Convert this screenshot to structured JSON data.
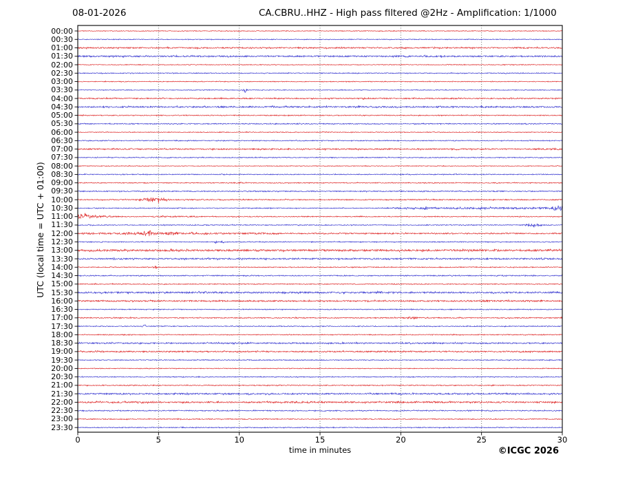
{
  "header": {
    "date": "08-01-2026"
  },
  "footer": {
    "credit": "©ICGC 2026"
  },
  "colors": {
    "grid": "#555555",
    "axis": "#000000",
    "background": "#ffffff"
  },
  "chart_data": {
    "type": "line",
    "subtype": "helicorder-day-plot",
    "title": "CA.CBRU..HHZ - High pass filtered @2Hz - Amplification: 1/1000",
    "xlabel": "time in minutes",
    "ylabel": "UTC (local time = UTC + 01:00)",
    "x_range": [
      0,
      30
    ],
    "x_ticks": [
      0,
      5,
      10,
      15,
      20,
      25,
      30
    ],
    "grid_minutes": [
      5,
      10,
      15,
      20,
      25
    ],
    "minutes_per_row": 30,
    "legend": "rows alternate color by half hour: :00 red, :30 blue",
    "row_colors": {
      "red": "#dd2323",
      "blue": "#3030cf"
    },
    "rows": [
      {
        "label": "00:00",
        "color": "red",
        "noise": 0.5,
        "events": []
      },
      {
        "label": "00:30",
        "color": "blue",
        "noise": 0.5,
        "events": []
      },
      {
        "label": "01:00",
        "color": "red",
        "noise": 0.9,
        "events": []
      },
      {
        "label": "01:30",
        "color": "blue",
        "noise": 1.0,
        "events": []
      },
      {
        "label": "02:00",
        "color": "red",
        "noise": 0.5,
        "events": []
      },
      {
        "label": "02:30",
        "color": "blue",
        "noise": 0.6,
        "events": []
      },
      {
        "label": "03:00",
        "color": "red",
        "noise": 0.5,
        "events": []
      },
      {
        "label": "03:30",
        "color": "blue",
        "noise": 0.5,
        "events": [
          {
            "from": 10.2,
            "to": 10.6,
            "peak": 10.35,
            "amp": 3.6,
            "shape": "gauss"
          }
        ]
      },
      {
        "label": "04:00",
        "color": "red",
        "noise": 0.8,
        "events": []
      },
      {
        "label": "04:30",
        "color": "blue",
        "noise": 1.0,
        "events": []
      },
      {
        "label": "05:00",
        "color": "red",
        "noise": 0.6,
        "events": []
      },
      {
        "label": "05:30",
        "color": "blue",
        "noise": 0.7,
        "events": []
      },
      {
        "label": "06:00",
        "color": "red",
        "noise": 0.5,
        "events": []
      },
      {
        "label": "06:30",
        "color": "blue",
        "noise": 0.6,
        "events": []
      },
      {
        "label": "07:00",
        "color": "red",
        "noise": 0.9,
        "events": []
      },
      {
        "label": "07:30",
        "color": "blue",
        "noise": 0.6,
        "events": []
      },
      {
        "label": "08:00",
        "color": "red",
        "noise": 0.5,
        "events": []
      },
      {
        "label": "08:30",
        "color": "blue",
        "noise": 0.6,
        "events": []
      },
      {
        "label": "09:00",
        "color": "red",
        "noise": 0.6,
        "events": [
          {
            "from": 9.3,
            "to": 10.8,
            "peak": 10.0,
            "amp": 1.1,
            "shape": "gauss"
          }
        ]
      },
      {
        "label": "09:30",
        "color": "blue",
        "noise": 0.7,
        "events": [
          {
            "from": 13.4,
            "to": 14.2,
            "peak": 13.8,
            "amp": 1.0,
            "shape": "gauss"
          }
        ]
      },
      {
        "label": "10:00",
        "color": "red",
        "noise": 0.7,
        "events": [
          {
            "from": 3.8,
            "to": 6.5,
            "peak": 4.7,
            "amp": 3.2,
            "shape": "gauss"
          },
          {
            "from": 6.5,
            "to": 8.5,
            "amp": 0.9,
            "shape": "flat"
          }
        ]
      },
      {
        "label": "10:30",
        "color": "blue",
        "noise": 0.6,
        "events": [
          {
            "from": 19.5,
            "to": 30,
            "amp": 1.2,
            "shape": "flat"
          },
          {
            "from": 21.1,
            "to": 22.0,
            "peak": 21.5,
            "amp": 2.2,
            "shape": "gauss"
          },
          {
            "from": 23.7,
            "to": 24.6,
            "peak": 24.1,
            "amp": 1.6,
            "shape": "gauss"
          },
          {
            "from": 28.5,
            "to": 30,
            "peak": 29.7,
            "amp": 3.8,
            "shape": "gauss"
          }
        ]
      },
      {
        "label": "11:00",
        "color": "red",
        "noise": 0.6,
        "events": [
          {
            "from": 0,
            "to": 4.5,
            "amp": 4.5,
            "shape": "decay"
          },
          {
            "from": 4.5,
            "to": 7.5,
            "amp": 0.9,
            "shape": "flat"
          }
        ]
      },
      {
        "label": "11:30",
        "color": "blue",
        "noise": 0.6,
        "events": [
          {
            "from": 27.0,
            "to": 28.9,
            "peak": 28.2,
            "amp": 2.2,
            "shape": "gauss"
          }
        ]
      },
      {
        "label": "12:00",
        "color": "red",
        "noise": 0.8,
        "events": [
          {
            "from": 0.3,
            "to": 12.5,
            "amp": 1.2,
            "shape": "flat"
          },
          {
            "from": 2.3,
            "to": 3.6,
            "peak": 3.0,
            "amp": 2.2,
            "shape": "gauss"
          },
          {
            "from": 3.9,
            "to": 5.3,
            "peak": 4.4,
            "amp": 4.2,
            "shape": "gauss"
          },
          {
            "from": 5.3,
            "to": 6.2,
            "amp": 2.0,
            "shape": "flat"
          },
          {
            "from": 10.9,
            "to": 11.7,
            "peak": 11.3,
            "amp": 1.8,
            "shape": "gauss"
          },
          {
            "from": 29.3,
            "to": 29.7,
            "peak": 29.5,
            "amp": 1.4,
            "shape": "gauss"
          }
        ]
      },
      {
        "label": "12:30",
        "color": "blue",
        "noise": 0.6,
        "events": [
          {
            "from": 8.4,
            "to": 8.7,
            "peak": 8.55,
            "amp": 2.2,
            "shape": "gauss"
          },
          {
            "from": 8.8,
            "to": 9.1,
            "peak": 8.95,
            "amp": 2.0,
            "shape": "gauss"
          }
        ]
      },
      {
        "label": "13:00",
        "color": "red",
        "noise": 1.3,
        "events": []
      },
      {
        "label": "13:30",
        "color": "blue",
        "noise": 1.0,
        "events": []
      },
      {
        "label": "14:00",
        "color": "red",
        "noise": 0.6,
        "events": [
          {
            "from": 4.6,
            "to": 5.0,
            "peak": 4.8,
            "amp": 2.4,
            "shape": "gauss"
          }
        ]
      },
      {
        "label": "14:30",
        "color": "blue",
        "noise": 0.7,
        "events": []
      },
      {
        "label": "15:00",
        "color": "red",
        "noise": 0.6,
        "events": [
          {
            "from": 0.9,
            "to": 1.3,
            "peak": 1.1,
            "amp": 1.4,
            "shape": "gauss"
          }
        ]
      },
      {
        "label": "15:30",
        "color": "blue",
        "noise": 1.1,
        "events": []
      },
      {
        "label": "16:00",
        "color": "red",
        "noise": 1.0,
        "events": [
          {
            "from": 24.6,
            "to": 26.3,
            "peak": 25.2,
            "amp": 1.8,
            "shape": "gauss"
          }
        ]
      },
      {
        "label": "16:30",
        "color": "blue",
        "noise": 0.6,
        "events": []
      },
      {
        "label": "17:00",
        "color": "red",
        "noise": 0.7,
        "events": [
          {
            "from": 20.2,
            "to": 21.2,
            "peak": 20.7,
            "amp": 2.0,
            "shape": "gauss"
          }
        ]
      },
      {
        "label": "17:30",
        "color": "blue",
        "noise": 0.6,
        "events": [
          {
            "from": 3.9,
            "to": 4.4,
            "peak": 4.1,
            "amp": 1.8,
            "shape": "gauss"
          }
        ]
      },
      {
        "label": "18:00",
        "color": "red",
        "noise": 0.6,
        "events": []
      },
      {
        "label": "18:30",
        "color": "blue",
        "noise": 0.9,
        "events": []
      },
      {
        "label": "19:00",
        "color": "red",
        "noise": 0.9,
        "events": []
      },
      {
        "label": "19:30",
        "color": "blue",
        "noise": 0.6,
        "events": []
      },
      {
        "label": "20:00",
        "color": "red",
        "noise": 0.5,
        "events": []
      },
      {
        "label": "20:30",
        "color": "blue",
        "noise": 0.6,
        "events": []
      },
      {
        "label": "21:00",
        "color": "red",
        "noise": 0.6,
        "events": []
      },
      {
        "label": "21:30",
        "color": "blue",
        "noise": 1.0,
        "events": []
      },
      {
        "label": "22:00",
        "color": "red",
        "noise": 1.0,
        "events": [
          {
            "from": 13.0,
            "to": 15.2,
            "amp": 1.3,
            "shape": "flat"
          },
          {
            "from": 19.8,
            "to": 21.0,
            "amp": 1.3,
            "shape": "flat"
          }
        ]
      },
      {
        "label": "22:30",
        "color": "blue",
        "noise": 0.7,
        "events": []
      },
      {
        "label": "23:00",
        "color": "red",
        "noise": 0.6,
        "events": []
      },
      {
        "label": "23:30",
        "color": "blue",
        "noise": 0.6,
        "events": []
      }
    ]
  }
}
